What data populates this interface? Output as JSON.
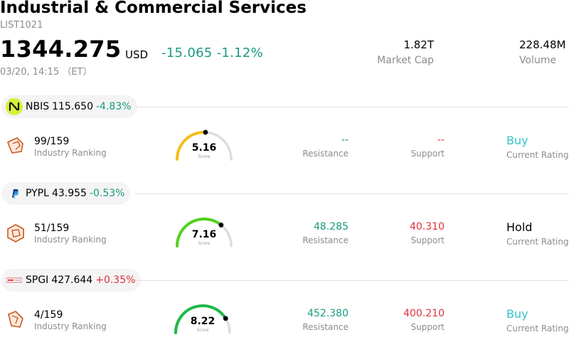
{
  "header": {
    "title": "Industrial & Commercial Services",
    "code": "LIST1021",
    "price": "1344.275",
    "currency": "USD",
    "change": "-15.065",
    "change_pct": "-1.12%",
    "time": "03/20, 14:15 （ET）",
    "market_cap_value": "1.82T",
    "market_cap_label": "Market Cap",
    "volume_value": "228.48M",
    "volume_label": "Volume"
  },
  "colors": {
    "positive_teal": "#1a9a7f",
    "negative_red": "#e0303a",
    "buy": "#35c2c9",
    "gauge_track": "#dcdce4"
  },
  "stocks": [
    {
      "symbol": "NBIS",
      "price": "115.650",
      "change_pct": "-4.83%",
      "rank": "99/159",
      "rank_label": "Industry Ranking",
      "score": "5.16",
      "score_label": "Score",
      "score_fraction": 0.516,
      "gauge_color": "#f5bf18",
      "resistance": "--",
      "resistance_label": "Resistance",
      "support": "--",
      "support_label": "Support",
      "rating": "Buy",
      "rating_label": "Current Rating"
    },
    {
      "symbol": "PYPL",
      "price": "43.955",
      "change_pct": "-0.53%",
      "rank": "51/159",
      "rank_label": "Industry Ranking",
      "score": "7.16",
      "score_label": "Score",
      "score_fraction": 0.716,
      "gauge_color": "#4fd11c",
      "resistance": "48.285",
      "resistance_label": "Resistance",
      "support": "40.310",
      "support_label": "Support",
      "rating": "Hold",
      "rating_label": "Current Rating"
    },
    {
      "symbol": "SPGI",
      "price": "427.644",
      "change_pct": "+0.35%",
      "rank": "4/159",
      "rank_label": "Industry Ranking",
      "score": "8.22",
      "score_label": "Score",
      "score_fraction": 0.822,
      "gauge_color": "#1fb84a",
      "resistance": "452.380",
      "resistance_label": "Resistance",
      "support": "400.210",
      "support_label": "Support",
      "rating": "Buy",
      "rating_label": "Current Rating"
    }
  ]
}
